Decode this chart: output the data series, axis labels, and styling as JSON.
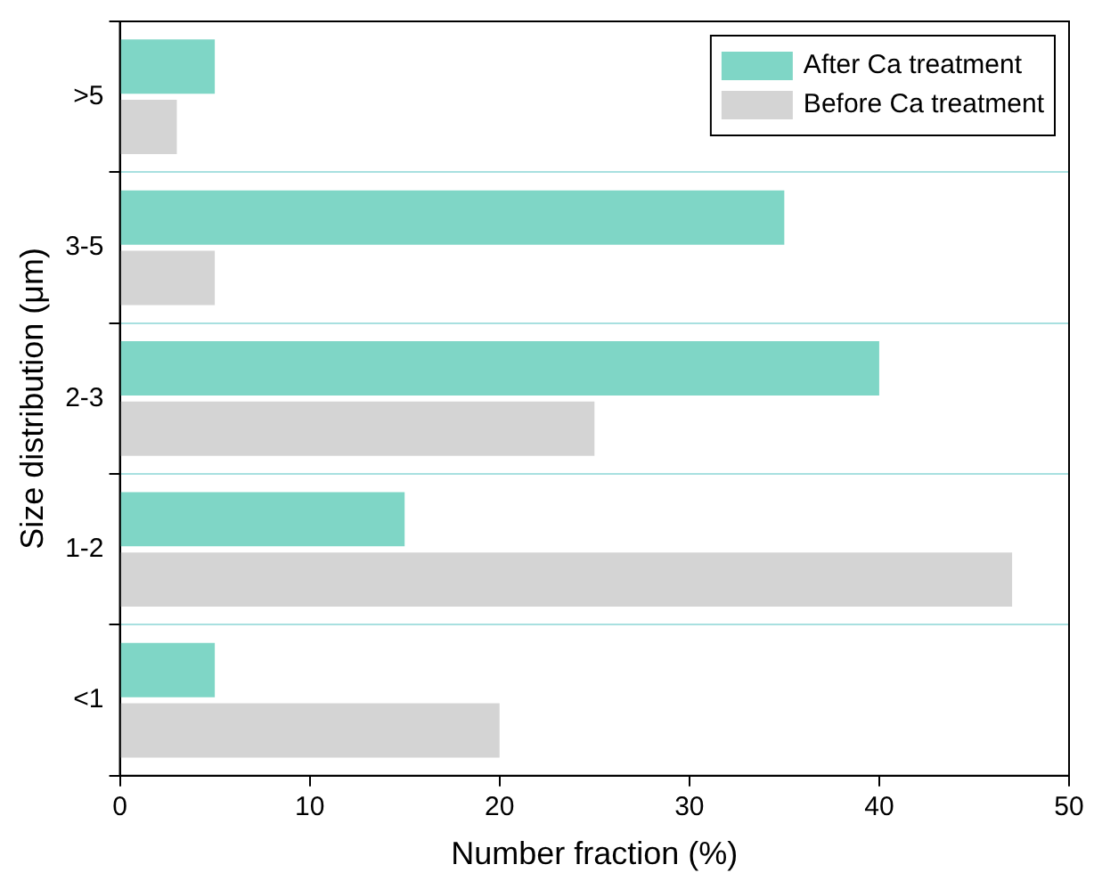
{
  "chart_data": {
    "type": "bar",
    "orientation": "horizontal",
    "xlabel": "Number fraction (%)",
    "ylabel": "Size distribution (μm)",
    "categories": [
      ">5",
      "3-5",
      "2-3",
      "1-2",
      "<1"
    ],
    "series": [
      {
        "name": "After Ca treatment",
        "color": "#7fd6c6",
        "values": [
          5,
          35,
          40,
          15,
          5
        ]
      },
      {
        "name": "Before Ca treatment",
        "color": "#d4d4d4",
        "values": [
          3,
          5,
          25,
          47,
          20
        ]
      }
    ],
    "xlim": [
      0,
      50
    ],
    "xticks": [
      0,
      10,
      20,
      30,
      40,
      50
    ],
    "grid": "y",
    "legend": "top right"
  }
}
